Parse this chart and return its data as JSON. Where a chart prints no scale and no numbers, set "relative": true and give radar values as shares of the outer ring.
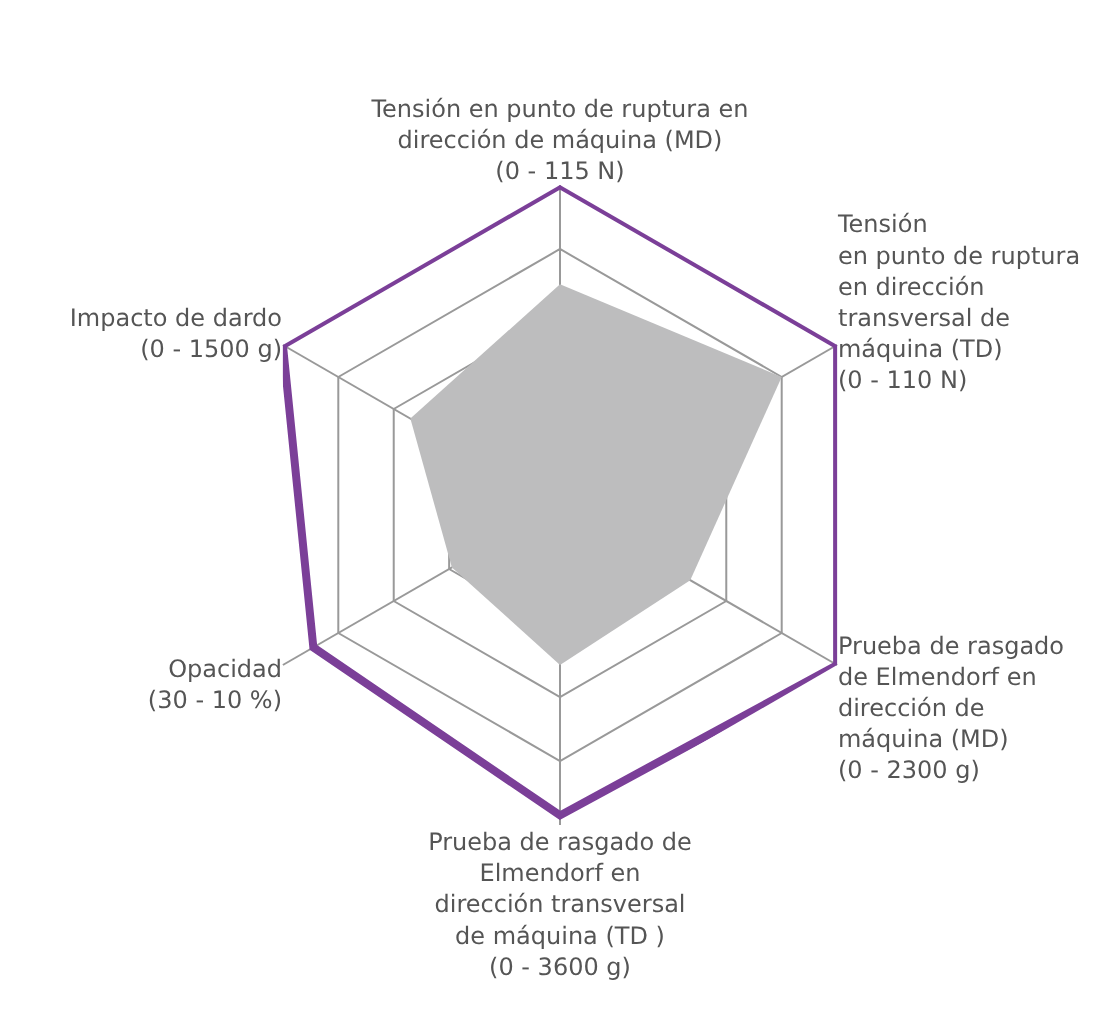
{
  "chart_data": {
    "type": "radar",
    "relative": true,
    "marker": "none",
    "grid": true,
    "categories": [
      "Tensión en punto de ruptura en\ndirección de máquina (MD)\n(0 - 115 N)",
      "Tensión\nen punto de ruptura\nen dirección\ntransversal de\nmáquina (TD)\n(0 - 110 N)",
      "Prueba de rasgado\nde Elmendorf en\ndirección de\nmáquina (MD)\n(0 - 2300 g)",
      "Prueba de rasgado de\nElmendorf en\ndirección transversal\nde máquina (TD )\n(0 - 3600 g)",
      "Opacidad\n(30 - 10 %)",
      "Impacto de dardo\n(0 - 1500 g)"
    ],
    "series": [
      {
        "type": "area",
        "color": "#bdbdbe",
        "values": [
          0.69,
          0.8,
          0.47,
          0.5,
          0.39,
          0.54
        ]
      },
      {
        "type": "radar",
        "color": "#7b3f98",
        "values": [
          1,
          1,
          1,
          0.97,
          0.89,
          1
        ]
      }
    ]
  }
}
